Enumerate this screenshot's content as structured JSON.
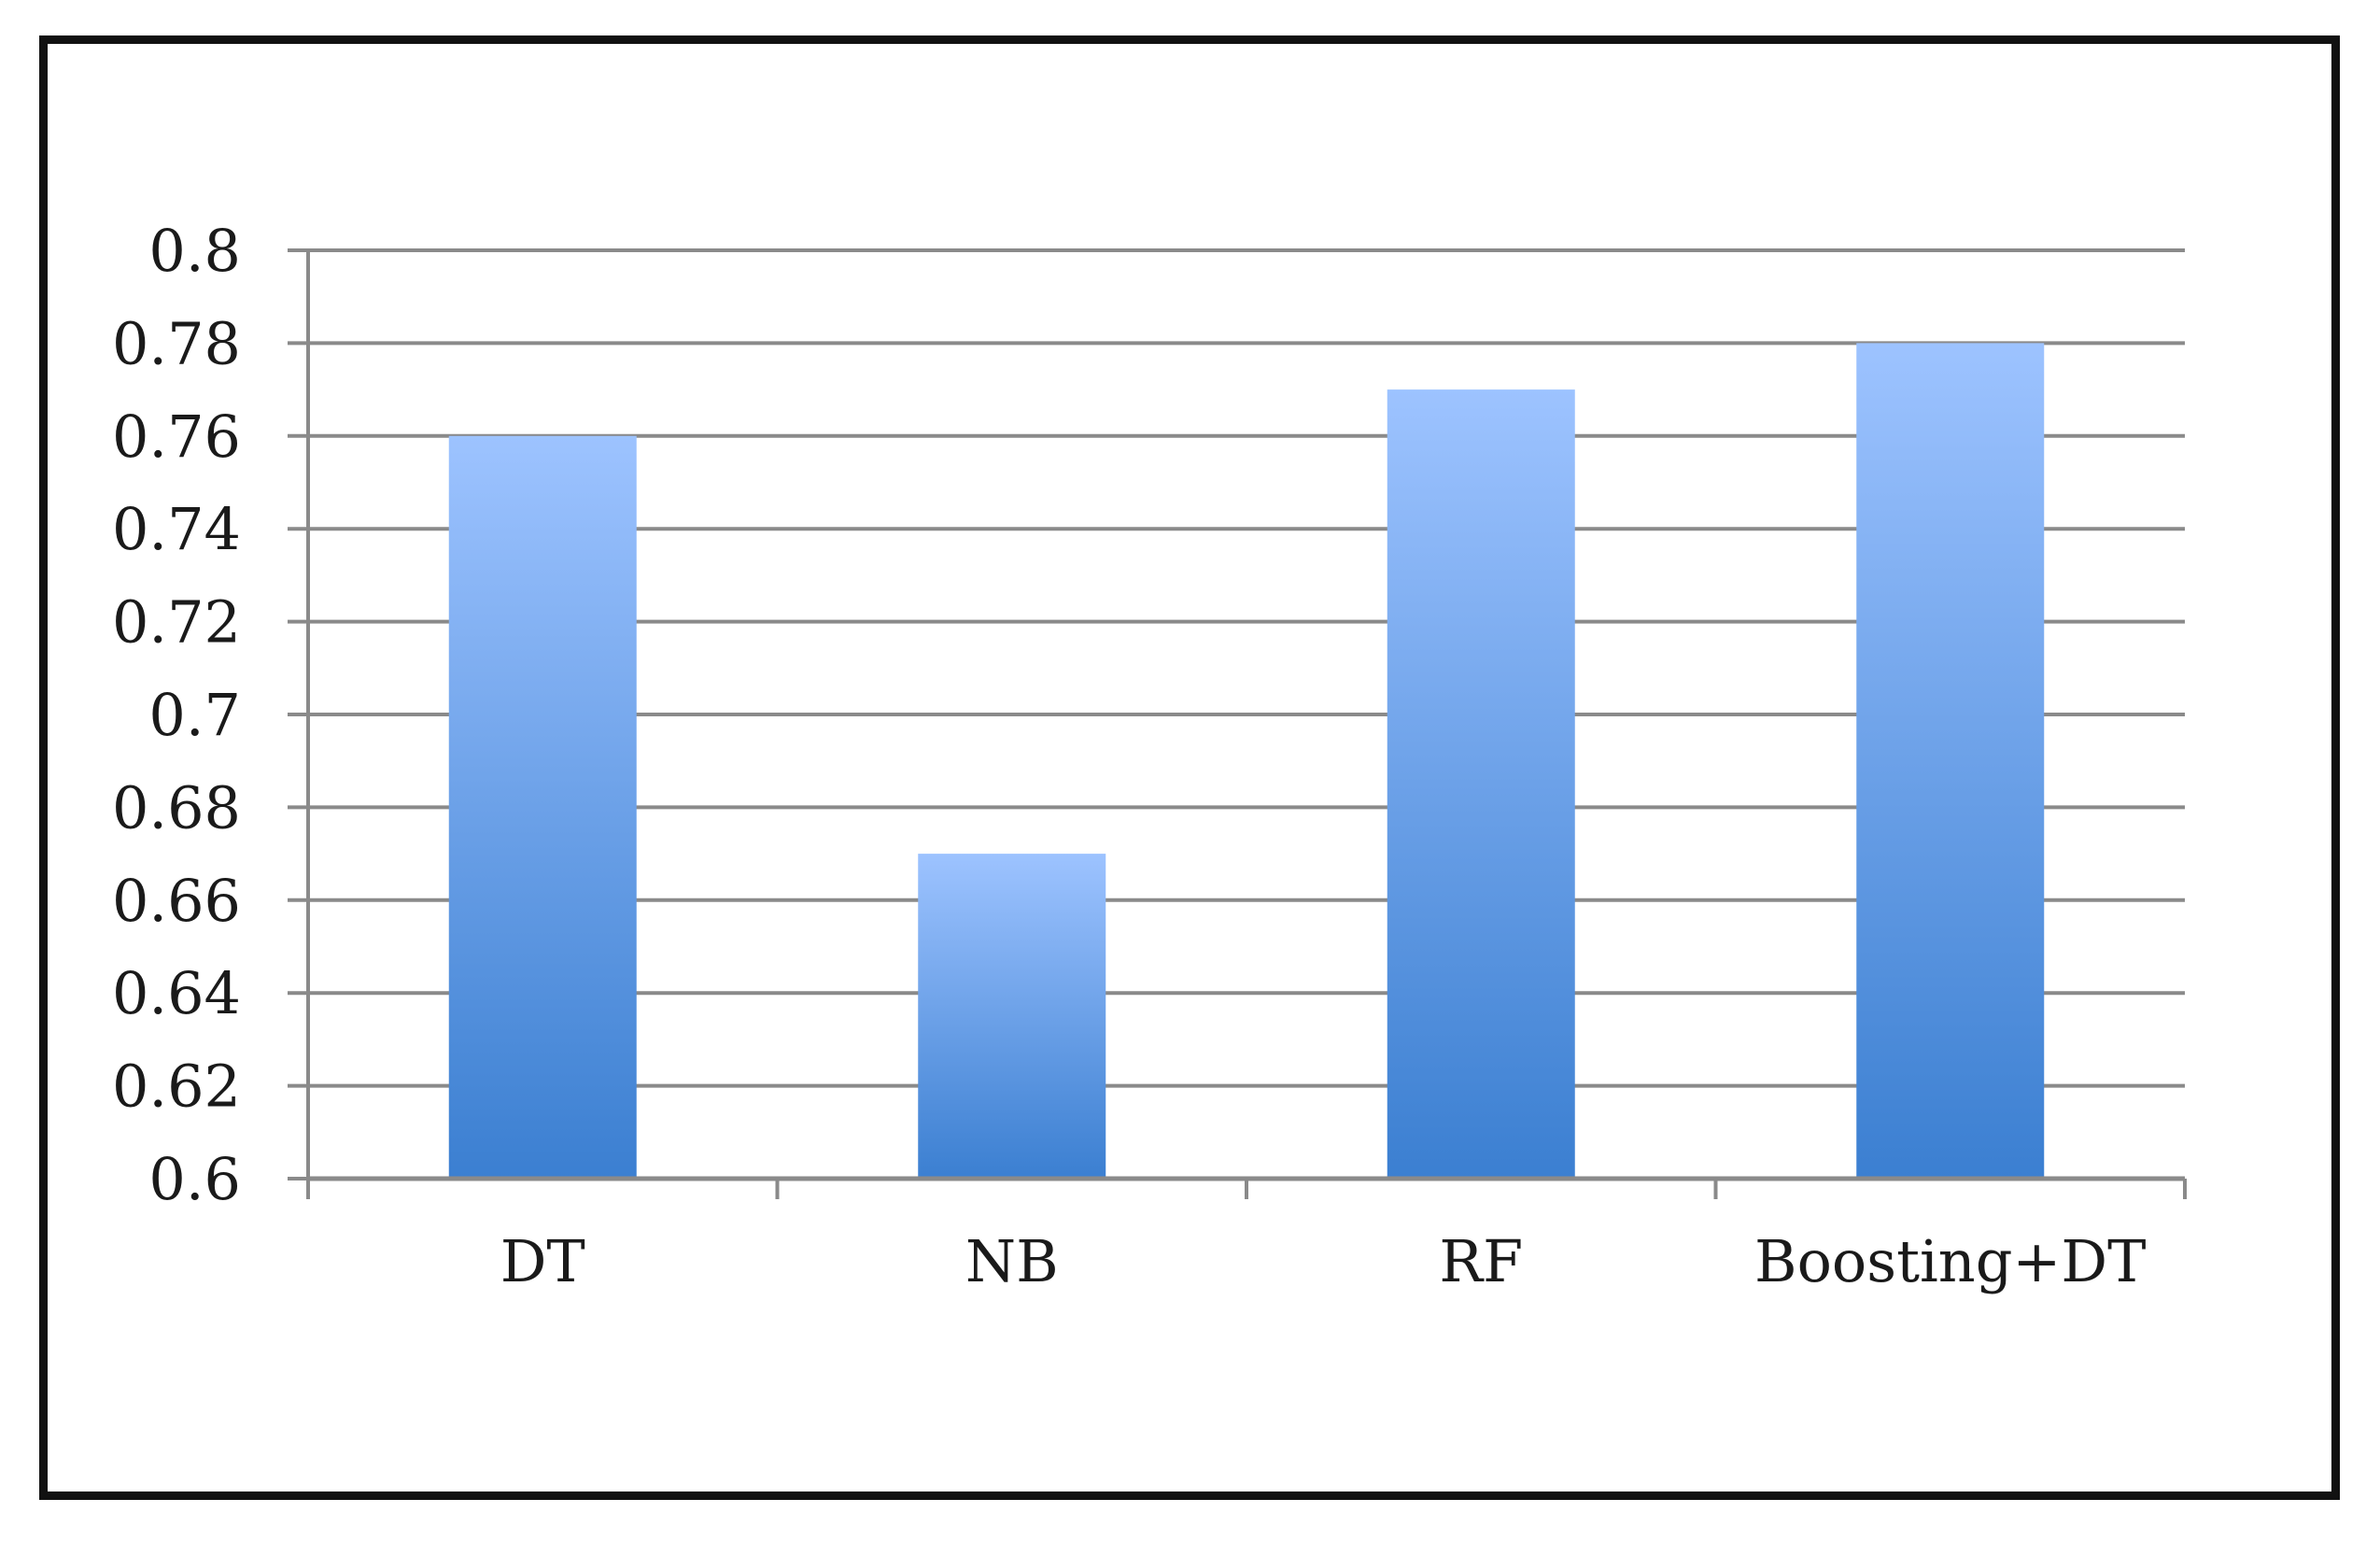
{
  "chart_data": {
    "type": "bar",
    "categories": [
      "DT",
      "NB",
      "RF",
      "Boosting+DT"
    ],
    "values": [
      0.76,
      0.67,
      0.77,
      0.78
    ],
    "ylim": [
      0.6,
      0.8
    ],
    "yticks": [
      "0.6",
      "0.62",
      "0.64",
      "0.66",
      "0.68",
      "0.7",
      "0.72",
      "0.74",
      "0.76",
      "0.78",
      "0.8"
    ],
    "grid": true,
    "legend": "none",
    "colors": {
      "bar_top": "#9dc3ff",
      "bar_bottom": "#3b7fd1",
      "grid": "#8a8a8a",
      "axis": "#8a8a8a",
      "text": "#1a1a1a"
    }
  }
}
